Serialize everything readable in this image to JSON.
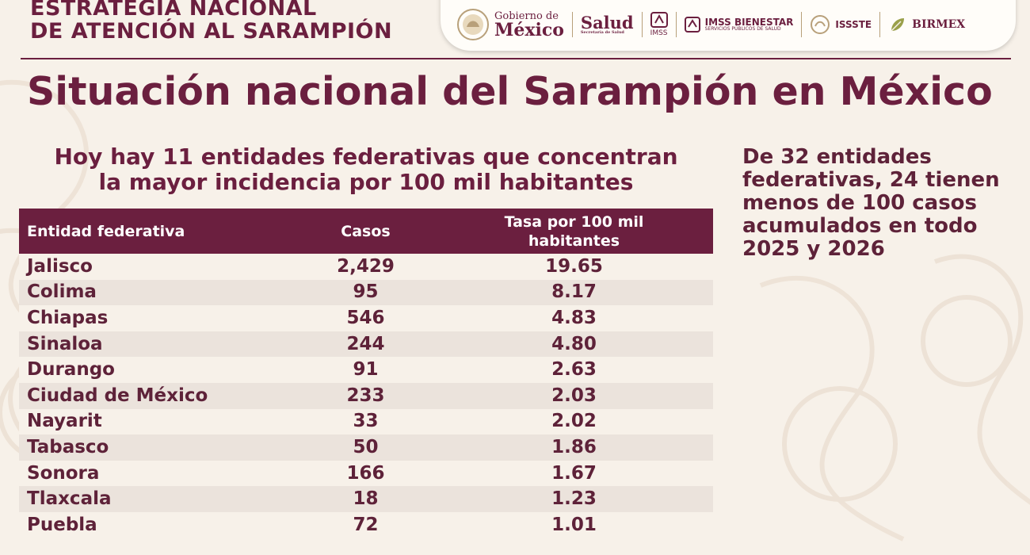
{
  "header": {
    "title_line1": "ESTRATEGIA NACIONAL",
    "title_line2": "DE ATENCIÓN AL SARAMPIÓN"
  },
  "logos": {
    "gobierno_small": "Gobierno de",
    "gobierno_big": "México",
    "salud": "Salud",
    "salud_sub": "Secretaría de Salud",
    "imss": "IMSS",
    "imss_bienestar": "IMSS BIENESTAR",
    "imss_bienestar_sub": "SERVICIOS PÚBLICOS DE SALUD",
    "issste": "ISSSTE",
    "birmex": "BIRMEX"
  },
  "main_title": "Situación nacional del Sarampión en México",
  "subtitle_line1": "Hoy hay 11 entidades federativas que concentran",
  "subtitle_line2": "la mayor incidencia por 100 mil habitantes",
  "side_note": "De 32 entidades federativas, 24 tienen menos de 100 casos acumulados en todo 2025 y 2026",
  "table": {
    "headers": {
      "name": "Entidad federativa",
      "cases": "Casos",
      "rate": "Tasa por 100 mil habitantes"
    },
    "rows": [
      {
        "name": "Jalisco",
        "cases": "2,429",
        "rate": "19.65"
      },
      {
        "name": "Colima",
        "cases": "95",
        "rate": "8.17"
      },
      {
        "name": "Chiapas",
        "cases": "546",
        "rate": "4.83"
      },
      {
        "name": "Sinaloa",
        "cases": "244",
        "rate": "4.80"
      },
      {
        "name": "Durango",
        "cases": "91",
        "rate": "2.63"
      },
      {
        "name": "Ciudad de México",
        "cases": "233",
        "rate": "2.03"
      },
      {
        "name": "Nayarit",
        "cases": "33",
        "rate": "2.02"
      },
      {
        "name": "Tabasco",
        "cases": "50",
        "rate": "1.86"
      },
      {
        "name": "Sonora",
        "cases": "166",
        "rate": "1.67"
      },
      {
        "name": "Tlaxcala",
        "cases": "18",
        "rate": "1.23"
      },
      {
        "name": "Puebla",
        "cases": "72",
        "rate": "1.01"
      }
    ]
  },
  "colors": {
    "primary": "#6b1f3f",
    "background": "#f7f1e9",
    "row_alt": "#ebe3dc",
    "gold": "#b8a07a"
  }
}
